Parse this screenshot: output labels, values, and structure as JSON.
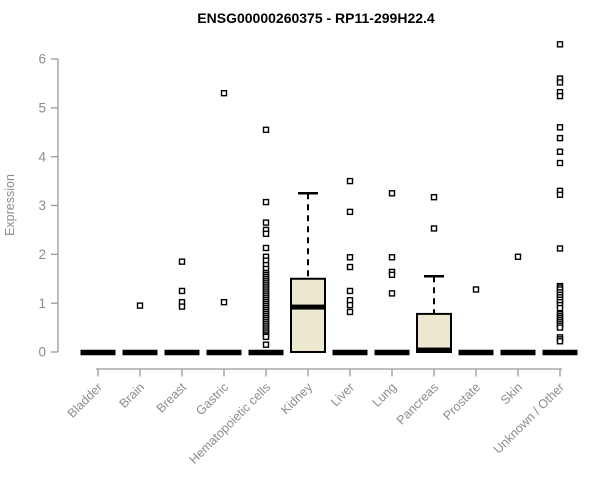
{
  "colors": {
    "background": "#ffffff",
    "title_text": "#000000",
    "axis_line": "#999999",
    "axis_text": "#8c8c8c",
    "box_fill": "#ede9d0",
    "box_stroke": "#000000",
    "median": "#000000",
    "outlier_stroke": "#000000",
    "outlier_fill": "#ffffff"
  },
  "chart_data": {
    "type": "boxplot",
    "title": "ENSG00000260375 - RP11-299H22.4",
    "xlabel": "",
    "ylabel": "Expression",
    "ylim": [
      0,
      6
    ],
    "yticks": [
      0,
      1,
      2,
      3,
      4,
      5,
      6
    ],
    "grid": false,
    "legend": "none",
    "categories": [
      "Bladder",
      "Brain",
      "Breast",
      "Gastric",
      "Hematopoietic cells",
      "Kidney",
      "Liver",
      "Lung",
      "Pancreas",
      "Prostate",
      "Skin",
      "Unknown / Other"
    ],
    "series": [
      {
        "label": "Bladder",
        "q1": 0,
        "median": 0,
        "q3": 0,
        "whisker_low": 0,
        "whisker_high": 0,
        "outliers": []
      },
      {
        "label": "Brain",
        "q1": 0,
        "median": 0,
        "q3": 0,
        "whisker_low": 0,
        "whisker_high": 0,
        "outliers": [
          0.95
        ]
      },
      {
        "label": "Breast",
        "q1": 0,
        "median": 0,
        "q3": 0,
        "whisker_low": 0,
        "whisker_high": 0,
        "outliers": [
          1.85,
          1.25,
          1.02,
          0.93
        ]
      },
      {
        "label": "Gastric",
        "q1": 0,
        "median": 0,
        "q3": 0,
        "whisker_low": 0,
        "whisker_high": 0,
        "outliers": [
          5.3,
          1.02
        ]
      },
      {
        "label": "Hematopoietic cells",
        "q1": 0,
        "median": 0,
        "q3": 0,
        "whisker_low": 0,
        "whisker_high": 0,
        "outliers": [
          4.55,
          3.07,
          2.65,
          2.5,
          2.42,
          2.13,
          1.95,
          1.87,
          1.78,
          1.7,
          1.62,
          1.58,
          1.54,
          1.5,
          1.46,
          1.42,
          1.38,
          1.34,
          1.3,
          1.26,
          1.22,
          1.18,
          1.14,
          1.1,
          1.06,
          1.02,
          0.98,
          0.94,
          0.9,
          0.86,
          0.82,
          0.78,
          0.74,
          0.7,
          0.66,
          0.62,
          0.58,
          0.54,
          0.5,
          0.46,
          0.42,
          0.38,
          0.34,
          0.31,
          0.15
        ]
      },
      {
        "label": "Kidney",
        "q1": 0,
        "median": 0.92,
        "q3": 1.5,
        "whisker_low": 0,
        "whisker_high": 3.25,
        "outliers": []
      },
      {
        "label": "Liver",
        "q1": 0,
        "median": 0,
        "q3": 0,
        "whisker_low": 0,
        "whisker_high": 0,
        "outliers": [
          3.5,
          2.87,
          1.94,
          1.74,
          1.25,
          1.06,
          0.96,
          0.82
        ]
      },
      {
        "label": "Lung",
        "q1": 0,
        "median": 0,
        "q3": 0,
        "whisker_low": 0,
        "whisker_high": 0,
        "outliers": [
          3.25,
          1.94,
          1.64,
          1.58,
          1.2
        ]
      },
      {
        "label": "Pancreas",
        "q1": 0,
        "median": 0.04,
        "q3": 0.78,
        "whisker_low": 0,
        "whisker_high": 1.55,
        "outliers": [
          3.17,
          2.53
        ]
      },
      {
        "label": "Prostate",
        "q1": 0,
        "median": 0,
        "q3": 0,
        "whisker_low": 0,
        "whisker_high": 0,
        "outliers": [
          1.28
        ]
      },
      {
        "label": "Skin",
        "q1": 0,
        "median": 0,
        "q3": 0,
        "whisker_low": 0,
        "whisker_high": 0,
        "outliers": [
          1.95
        ]
      },
      {
        "label": "Unknown / Other",
        "q1": 0,
        "median": 0,
        "q3": 0,
        "whisker_low": 0,
        "whisker_high": 0,
        "outliers": [
          6.3,
          5.6,
          5.52,
          5.32,
          5.24,
          4.6,
          4.38,
          4.1,
          3.87,
          3.3,
          3.22,
          2.12,
          1.35,
          1.32,
          1.28,
          1.22,
          1.17,
          1.12,
          1.07,
          1.02,
          0.96,
          0.9,
          0.78,
          0.74,
          0.7,
          0.66,
          0.62,
          0.58,
          0.54,
          0.5,
          0.3,
          0.26,
          0.22
        ]
      }
    ]
  }
}
